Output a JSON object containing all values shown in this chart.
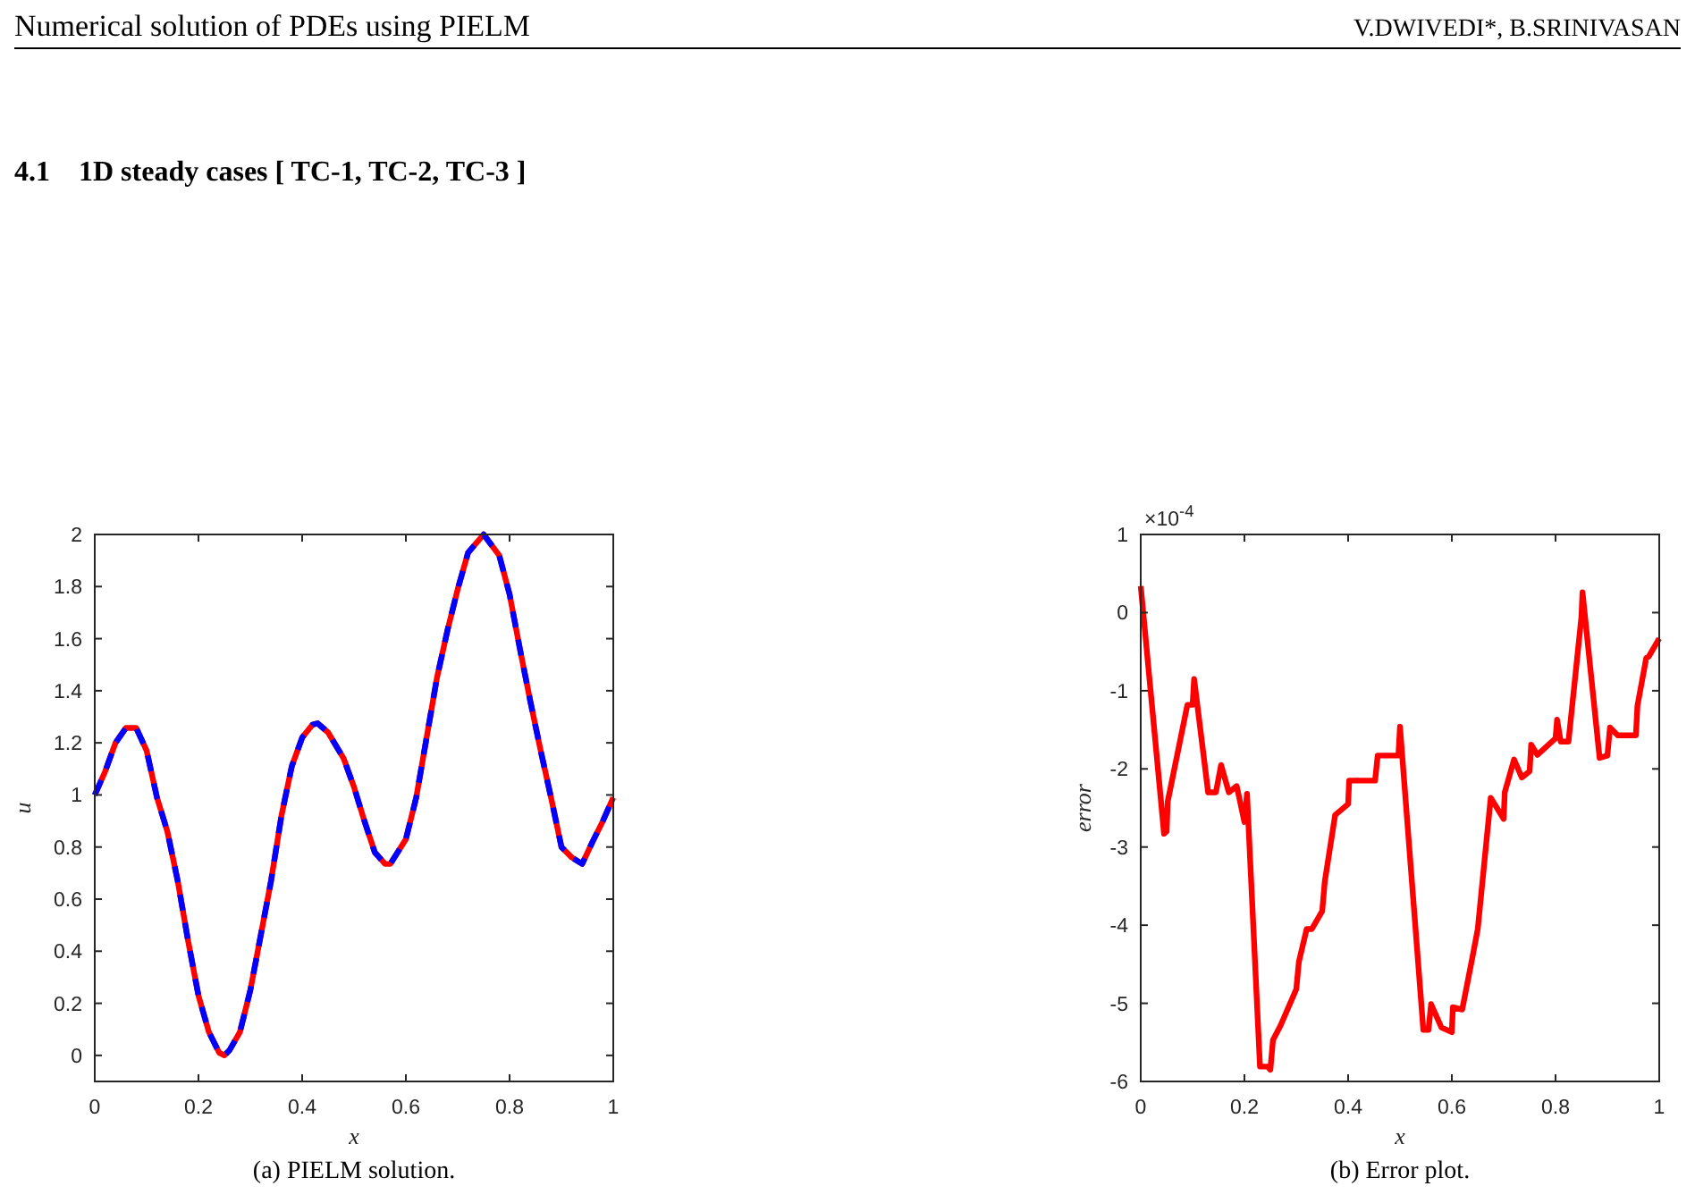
{
  "chart_data": [
    {
      "type": "line",
      "xlabel": "x",
      "ylabel": "u",
      "xlim": [
        0,
        1
      ],
      "ylim": [
        -0.1,
        2
      ],
      "xticks": [
        0,
        0.2,
        0.4,
        0.6,
        0.8,
        1
      ],
      "yticks": [
        0,
        0.2,
        0.4,
        0.6,
        0.8,
        1,
        1.2,
        1.4,
        1.6,
        1.8,
        2
      ],
      "grid": false,
      "annotations": [
        "Numerical solution of PDEs using PIELM",
        "V.DWIVEDI*, B.SRINIVASAN",
        "4.1    1D steady cases [ TC-1, TC-2, TC-3 ]",
        "(a) PIELM solution."
      ],
      "x": [
        0,
        0.02,
        0.04,
        0.06,
        0.08,
        0.1,
        0.12,
        0.14,
        0.16,
        0.18,
        0.2,
        0.22,
        0.24,
        0.25,
        0.26,
        0.28,
        0.3,
        0.32,
        0.34,
        0.36,
        0.38,
        0.4,
        0.42,
        0.43,
        0.45,
        0.48,
        0.5,
        0.52,
        0.54,
        0.56,
        0.57,
        0.6,
        0.62,
        0.64,
        0.66,
        0.68,
        0.7,
        0.72,
        0.75,
        0.78,
        0.8,
        0.82,
        0.84,
        0.86,
        0.88,
        0.9,
        0.92,
        0.94,
        0.96,
        0.98,
        1
      ],
      "series": [
        {
          "color": "#ff0000",
          "line_style": "solid",
          "values": [
            1,
            1.09,
            1.2,
            1.257,
            1.257,
            1.17,
            0.99,
            0.86,
            0.67,
            0.44,
            0.23,
            0.09,
            0.01,
            0,
            0.02,
            0.09,
            0.25,
            0.46,
            0.67,
            0.92,
            1.11,
            1.22,
            1.27,
            1.275,
            1.24,
            1.14,
            1.03,
            0.9,
            0.78,
            0.735,
            0.735,
            0.83,
            0.99,
            1.22,
            1.45,
            1.63,
            1.79,
            1.93,
            2,
            1.92,
            1.77,
            1.56,
            1.36,
            1.17,
            0.99,
            0.8,
            0.76,
            0.735,
            0.82,
            0.9,
            0.99
          ]
        },
        {
          "color": "#0000ff",
          "line_style": "dashed",
          "values": [
            1,
            1.09,
            1.2,
            1.257,
            1.257,
            1.17,
            0.99,
            0.86,
            0.67,
            0.44,
            0.23,
            0.09,
            0.01,
            0,
            0.02,
            0.09,
            0.25,
            0.46,
            0.67,
            0.92,
            1.11,
            1.22,
            1.27,
            1.275,
            1.24,
            1.14,
            1.03,
            0.9,
            0.78,
            0.735,
            0.735,
            0.83,
            0.99,
            1.22,
            1.45,
            1.63,
            1.79,
            1.93,
            2,
            1.92,
            1.77,
            1.56,
            1.36,
            1.17,
            0.99,
            0.8,
            0.76,
            0.735,
            0.82,
            0.9,
            0.99
          ]
        }
      ]
    },
    {
      "type": "line",
      "xlabel": "x",
      "ylabel": "error",
      "xlim": [
        0,
        1
      ],
      "ylim": [
        -6,
        1
      ],
      "xticks": [
        0,
        0.2,
        0.4,
        0.6,
        0.8,
        1
      ],
      "yticks": [
        -6,
        -5,
        -4,
        -3,
        -2,
        -1,
        0,
        1
      ],
      "grid": false,
      "annotations": [
        "×10$^{-4}$",
        "(b) Error plot."
      ],
      "series": [
        {
          "color": "#ff0000",
          "line_style": "solid",
          "x": [
            0,
            0.045,
            0.05,
            0.052,
            0.09,
            0.1,
            0.103,
            0.13,
            0.145,
            0.155,
            0.17,
            0.185,
            0.19,
            0.2,
            0.205,
            0.23,
            0.245,
            0.25,
            0.255,
            0.27,
            0.3,
            0.305,
            0.32,
            0.33,
            0.35,
            0.355,
            0.375,
            0.4,
            0.402,
            0.452,
            0.457,
            0.497,
            0.5,
            0.545,
            0.555,
            0.56,
            0.58,
            0.6,
            0.602,
            0.62,
            0.64,
            0.65,
            0.675,
            0.7,
            0.702,
            0.72,
            0.735,
            0.75,
            0.753,
            0.765,
            0.8,
            0.803,
            0.81,
            0.825,
            0.85,
            0.852,
            0.885,
            0.9,
            0.905,
            0.92,
            0.955,
            0.958,
            0.975,
            0.98,
            1
          ],
          "values": [
            0.34,
            -2.83,
            -2.8,
            -2.42,
            -1.18,
            -1.18,
            -0.85,
            -2.3,
            -2.3,
            -1.95,
            -2.3,
            -2.22,
            -2.37,
            -2.68,
            -2.32,
            -5.81,
            -5.81,
            -5.85,
            -5.47,
            -5.28,
            -4.82,
            -4.47,
            -4.05,
            -4.05,
            -3.82,
            -3.44,
            -2.59,
            -2.45,
            -2.15,
            -2.15,
            -1.83,
            -1.83,
            -1.46,
            -5.34,
            -5.34,
            -5.01,
            -5.31,
            -5.37,
            -5.05,
            -5.08,
            -4.4,
            -4.05,
            -2.37,
            -2.64,
            -2.3,
            -1.88,
            -2.11,
            -2.03,
            -1.69,
            -1.82,
            -1.61,
            -1.37,
            -1.65,
            -1.65,
            -0.05,
            0.26,
            -1.86,
            -1.83,
            -1.47,
            -1.57,
            -1.57,
            -1.19,
            -0.58,
            -0.56,
            -0.33
          ]
        }
      ]
    }
  ]
}
